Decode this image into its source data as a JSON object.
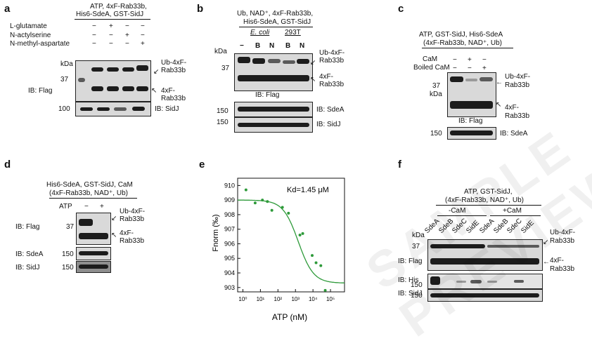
{
  "panel_a": {
    "label": "a",
    "header": "ATP, 4xF-Rab33b,",
    "header2": "His6-SdeA, GST-SidJ",
    "rows": [
      "L-glutamate",
      "N-actylserine",
      "N-methyl-aspartate"
    ],
    "signs": [
      [
        "−",
        "+",
        "−",
        "−"
      ],
      [
        "−",
        "−",
        "+",
        "−"
      ],
      [
        "−",
        "−",
        "−",
        "+"
      ]
    ],
    "kda": "kDa",
    "mw37": "37",
    "mw100": "100",
    "ib_flag": "IB: Flag",
    "ib_sidj": "IB: SidJ",
    "band1": "Ub-4xF-",
    "band1b": "Rab33b",
    "band2": "4xF-",
    "band2b": "Rab33b"
  },
  "panel_b": {
    "label": "b",
    "header": "Ub, NAD⁺, 4xF-Rab33b,",
    "header2": "His6-SdeA, GST-SidJ",
    "group1": "E. coli",
    "group2": "293T",
    "lanes": [
      "−",
      "B",
      "N",
      "B",
      "N"
    ],
    "kda": "kDa",
    "mw37": "37",
    "mw150a": "150",
    "mw150b": "150",
    "ib_flag": "IB: Flag",
    "ib_sdea": "IB: SdeA",
    "ib_sidj": "IB: SidJ",
    "band1": "Ub-4xF-",
    "band1b": "Rab33b",
    "band2": "4xF-",
    "band2b": "Rab33b"
  },
  "panel_c": {
    "label": "c",
    "header": "ATP, GST-SidJ, His6-SdeA",
    "header2": "(4xF-Rab33b, NAD⁺, Ub)",
    "row1": "CaM",
    "row2": "Boiled CaM",
    "signs1": [
      "−",
      "+",
      "−"
    ],
    "signs2": [
      "−",
      "−",
      "+"
    ],
    "mw37": "37",
    "kda": "kDa",
    "mw150": "150",
    "ib_flag": "IB: Flag",
    "ib_sdea": "IB: SdeA",
    "band1": "Ub-4xF-",
    "band1b": "Rab33b",
    "band2": "4xF-",
    "band2b": "Rab33b"
  },
  "panel_d": {
    "label": "d",
    "header": "His6-SdeA, GST-SidJ, CaM",
    "header2": "(4xF-Rab33b, NAD⁺, Ub)",
    "atp": "ATP",
    "signs": [
      "−",
      "+"
    ],
    "mw37": "37",
    "mw150a": "150",
    "mw150b": "150",
    "ib_flag": "IB: Flag",
    "ib_sdea": "IB: SdeA",
    "ib_sidj": "IB: SidJ",
    "band1": "Ub-4xF-",
    "band1b": "Rab33b",
    "band2": "4xF-",
    "band2b": "Rab33b"
  },
  "panel_e": {
    "label": "e",
    "kd": "Kd=1.45 μM",
    "ylabel": "Fnorm (‰)",
    "xlabel": "ATP  (nM)"
  },
  "panel_f": {
    "label": "f",
    "header": "ATP, GST-SidJ,",
    "header2": "(4xF-Rab33b, NAD⁺, Ub)",
    "group1": "-CaM",
    "group2": "+CaM",
    "lanes": [
      "SdeA",
      "SdeB",
      "SdeC",
      "SidE",
      "SdeA",
      "SdeB",
      "SdeC",
      "SidE"
    ],
    "kda": "kDa",
    "mw37": "37",
    "mw150": "150",
    "mw150b": "150",
    "ib_flag": "IB: Flag",
    "ib_his": "IB: His",
    "ib_sidj": "IB: SidJ",
    "band1": "Ub-4xF-",
    "band1b": "Rab33b",
    "band2": "4xF-",
    "band2b": "Rab33b"
  },
  "watermark": "SAMPLE PREVIEW",
  "chart_data": {
    "type": "scatter",
    "title": "",
    "kd_label": "Kd=1.45 μM",
    "xlabel": "ATP (nM)",
    "ylabel": "Fnorm (‰)",
    "xscale": "log",
    "xlim_log10": [
      -0.3,
      5.8
    ],
    "ylim": [
      902.7,
      910.5
    ],
    "x_ticks": [
      "10⁰",
      "10¹",
      "10²",
      "10³",
      "10⁴",
      "10⁵"
    ],
    "y_ticks": [
      903,
      904,
      905,
      906,
      907,
      908,
      909,
      910
    ],
    "points": [
      {
        "x": 1.5,
        "y": 909.7
      },
      {
        "x": 5,
        "y": 908.8
      },
      {
        "x": 13,
        "y": 909.0
      },
      {
        "x": 25,
        "y": 908.9
      },
      {
        "x": 45,
        "y": 908.3
      },
      {
        "x": 180,
        "y": 908.5
      },
      {
        "x": 400,
        "y": 908.1
      },
      {
        "x": 1800,
        "y": 906.6
      },
      {
        "x": 2600,
        "y": 906.7
      },
      {
        "x": 9000,
        "y": 905.2
      },
      {
        "x": 15000,
        "y": 904.7
      },
      {
        "x": 28000,
        "y": 904.5
      },
      {
        "x": 50000,
        "y": 902.8
      }
    ],
    "fit": {
      "top": 909.0,
      "bottom": 903.3,
      "kd_nM": 1450
    },
    "color": "#2e9a3a"
  }
}
